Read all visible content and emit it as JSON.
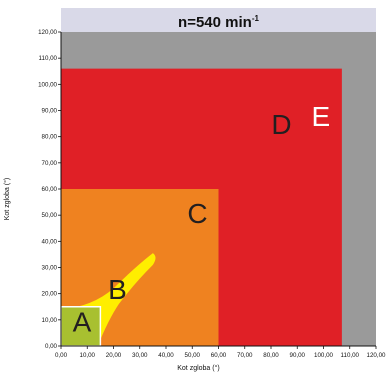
{
  "chart_data": {
    "type": "area",
    "title_main": "n=540 min",
    "title_sup": "-1",
    "xlabel": "Kot zgloba (°)",
    "ylabel": "Kot zgloba (°)",
    "xlim": [
      0,
      120
    ],
    "ylim": [
      0,
      120
    ],
    "x_ticks": [
      "0,00",
      "10,00",
      "20,00",
      "30,00",
      "40,00",
      "50,00",
      "60,00",
      "70,00",
      "80,00",
      "90,00",
      "100,00",
      "110,00",
      "120,00"
    ],
    "y_ticks": [
      "0,00",
      "10,00",
      "20,00",
      "30,00",
      "40,00",
      "50,00",
      "60,00",
      "70,00",
      "80,00",
      "90,00",
      "100,00",
      "110,00",
      "120,00"
    ],
    "zones": [
      {
        "name": "E",
        "color": "#9a9a9a",
        "x": [
          0,
          120
        ],
        "y": [
          0,
          120
        ]
      },
      {
        "name": "D",
        "color": "#e02026",
        "x": [
          0,
          107
        ],
        "y": [
          0,
          106
        ]
      },
      {
        "name": "C",
        "color": "#ef8220",
        "x": [
          0,
          60
        ],
        "y": [
          0,
          60
        ]
      },
      {
        "name": "B",
        "color": "#ffee00",
        "shape": "curved band along diagonal from (0,15) to (36,35)"
      },
      {
        "name": "A",
        "color": "#a8c030",
        "x": [
          0,
          15
        ],
        "y": [
          0,
          15
        ]
      }
    ]
  }
}
